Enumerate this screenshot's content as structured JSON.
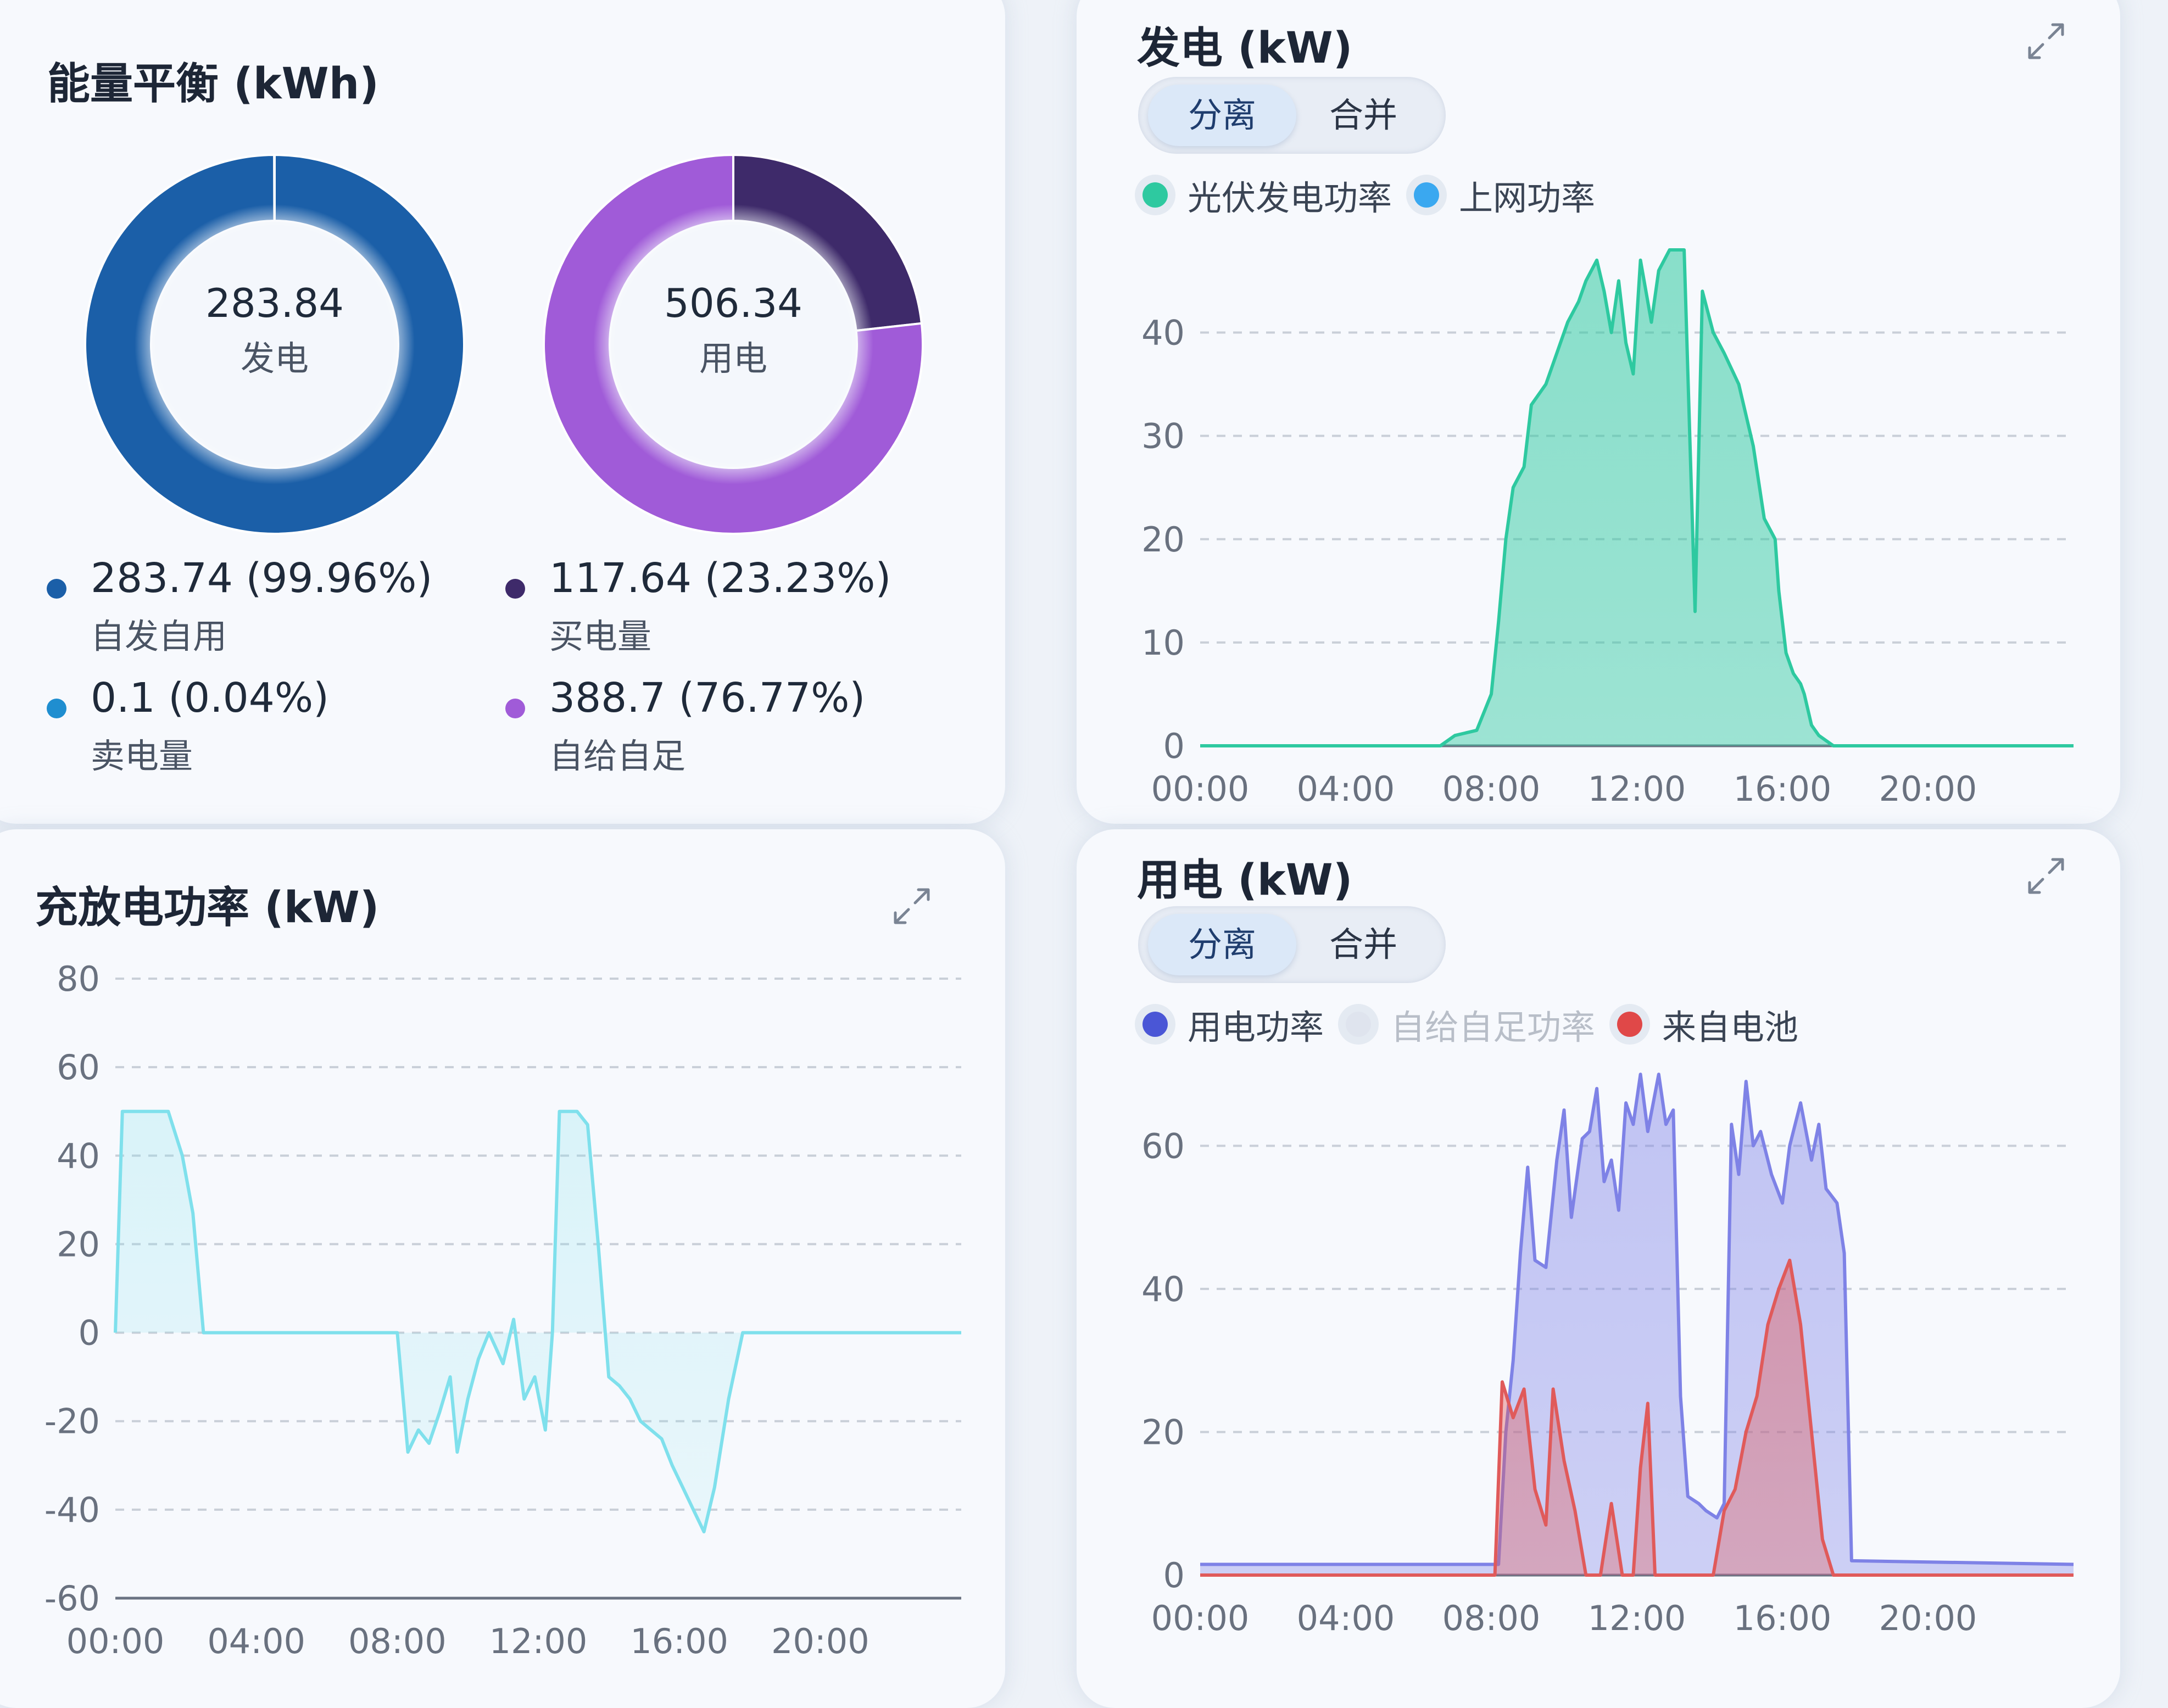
{
  "energy": {
    "title": "能量平衡 (kWh)",
    "gen_total": "283.84",
    "gen_label": "发电",
    "use_total": "506.34",
    "use_label": "用电",
    "stats": [
      {
        "value": "283.74 (99.96%)",
        "label": "自发自用",
        "color": "#1b5fa8"
      },
      {
        "value": "117.64 (23.23%)",
        "label": "买电量",
        "color": "#3e2a6a"
      },
      {
        "value": "0.1 (0.04%)",
        "label": "卖电量",
        "color": "#1f8ed0"
      },
      {
        "value": "388.7 (76.77%)",
        "label": "自给自足",
        "color": "#a05bd8"
      }
    ]
  },
  "toggle": {
    "separate": "分离",
    "merge": "合并"
  },
  "chart_data": [
    {
      "type": "pie",
      "values": [
        283.74,
        0.1
      ],
      "labels": [
        "自发自用",
        "卖电量"
      ],
      "colors": [
        "#1b5fa8",
        "#1f8ed0"
      ]
    },
    {
      "type": "pie",
      "values": [
        117.64,
        388.7
      ],
      "labels": [
        "买电量",
        "自给自足"
      ],
      "colors": [
        "#3e2a6a",
        "#a05bd8"
      ]
    },
    {
      "type": "area",
      "title": "发电 (kW)",
      "legend": [
        "光伏发电功率",
        "上网功率"
      ],
      "legend_colors": [
        "#2ec9a0",
        "#3aa8f0"
      ],
      "x_ticks": [
        "00:00",
        "04:00",
        "08:00",
        "12:00",
        "16:00",
        "20:00"
      ],
      "xlim": [
        0,
        24
      ],
      "ylim": [
        0,
        48
      ],
      "y_ticks": [
        0,
        10,
        20,
        30,
        40
      ],
      "series": [
        {
          "color": "#2ec9a0",
          "points": [
            [
              0,
              0
            ],
            [
              6.6,
              0
            ],
            [
              7.0,
              1
            ],
            [
              7.6,
              1.5
            ],
            [
              8.0,
              5
            ],
            [
              8.2,
              12
            ],
            [
              8.4,
              20
            ],
            [
              8.6,
              25
            ],
            [
              8.9,
              27
            ],
            [
              9.1,
              33
            ],
            [
              9.5,
              35
            ],
            [
              9.8,
              38
            ],
            [
              10.1,
              41
            ],
            [
              10.4,
              43
            ],
            [
              10.6,
              45
            ],
            [
              10.9,
              47
            ],
            [
              11.1,
              44
            ],
            [
              11.3,
              40
            ],
            [
              11.5,
              45
            ],
            [
              11.7,
              39
            ],
            [
              11.9,
              36
            ],
            [
              12.1,
              47
            ],
            [
              12.4,
              41
            ],
            [
              12.6,
              46
            ],
            [
              12.9,
              48
            ],
            [
              13.3,
              48
            ],
            [
              13.6,
              13
            ],
            [
              13.8,
              44
            ],
            [
              14.1,
              40
            ],
            [
              14.4,
              38
            ],
            [
              14.8,
              35
            ],
            [
              15.2,
              29
            ],
            [
              15.5,
              22
            ],
            [
              15.8,
              20
            ],
            [
              15.9,
              15
            ],
            [
              16.1,
              9
            ],
            [
              16.3,
              7
            ],
            [
              16.5,
              6
            ],
            [
              16.6,
              5
            ],
            [
              16.8,
              2
            ],
            [
              17.0,
              1
            ],
            [
              17.4,
              0
            ],
            [
              24,
              0
            ]
          ]
        }
      ]
    },
    {
      "type": "line",
      "title": "充放电功率 (kW)",
      "x_ticks": [
        "00:00",
        "04:00",
        "08:00",
        "12:00",
        "16:00",
        "20:00"
      ],
      "xlim": [
        0,
        24
      ],
      "ylim": [
        -60,
        80
      ],
      "y_ticks": [
        80,
        60,
        40,
        20,
        0,
        -20,
        -40,
        -60
      ],
      "series": [
        {
          "color": "#7fe0ec",
          "points": [
            [
              0,
              0
            ],
            [
              0.2,
              50
            ],
            [
              1.5,
              50
            ],
            [
              1.9,
              40
            ],
            [
              2.2,
              27
            ],
            [
              2.5,
              0
            ],
            [
              8.0,
              0
            ],
            [
              8.3,
              -27
            ],
            [
              8.6,
              -22
            ],
            [
              8.9,
              -25
            ],
            [
              9.2,
              -18
            ],
            [
              9.5,
              -10
            ],
            [
              9.7,
              -27
            ],
            [
              10.0,
              -15
            ],
            [
              10.3,
              -6
            ],
            [
              10.6,
              0
            ],
            [
              11.0,
              -7
            ],
            [
              11.3,
              3
            ],
            [
              11.6,
              -15
            ],
            [
              11.9,
              -10
            ],
            [
              12.2,
              -22
            ],
            [
              12.4,
              0
            ],
            [
              12.6,
              50
            ],
            [
              13.1,
              50
            ],
            [
              13.4,
              47
            ],
            [
              13.7,
              20
            ],
            [
              14.0,
              -10
            ],
            [
              14.3,
              -12
            ],
            [
              14.6,
              -15
            ],
            [
              14.9,
              -20
            ],
            [
              15.2,
              -22
            ],
            [
              15.5,
              -24
            ],
            [
              15.8,
              -30
            ],
            [
              16.1,
              -35
            ],
            [
              16.4,
              -40
            ],
            [
              16.7,
              -45
            ],
            [
              17.0,
              -35
            ],
            [
              17.4,
              -15
            ],
            [
              17.8,
              0
            ],
            [
              24,
              0
            ]
          ]
        }
      ]
    },
    {
      "type": "area",
      "title": "用电 (kW)",
      "legend": [
        "用电功率",
        "自给自足功率",
        "来自电池"
      ],
      "legend_colors": [
        "#4a56d6",
        "#dfe4ee",
        "#e04848"
      ],
      "x_ticks": [
        "00:00",
        "04:00",
        "08:00",
        "12:00",
        "16:00",
        "20:00"
      ],
      "xlim": [
        0,
        24
      ],
      "ylim": [
        0,
        72
      ],
      "y_ticks": [
        0,
        20,
        40,
        60
      ],
      "series": [
        {
          "color": "#7e82e6",
          "points": [
            [
              0,
              1.5
            ],
            [
              8.2,
              1.5
            ],
            [
              8.4,
              20
            ],
            [
              8.6,
              30
            ],
            [
              8.8,
              45
            ],
            [
              9.0,
              57
            ],
            [
              9.2,
              44
            ],
            [
              9.5,
              43
            ],
            [
              9.8,
              58
            ],
            [
              10.0,
              65
            ],
            [
              10.2,
              50
            ],
            [
              10.5,
              61
            ],
            [
              10.7,
              62
            ],
            [
              10.9,
              68
            ],
            [
              11.1,
              55
            ],
            [
              11.3,
              58
            ],
            [
              11.5,
              51
            ],
            [
              11.7,
              66
            ],
            [
              11.9,
              63
            ],
            [
              12.1,
              70
            ],
            [
              12.3,
              62
            ],
            [
              12.6,
              70
            ],
            [
              12.8,
              63
            ],
            [
              13.0,
              65
            ],
            [
              13.2,
              25
            ],
            [
              13.4,
              11
            ],
            [
              13.7,
              10
            ],
            [
              13.9,
              9
            ],
            [
              14.2,
              8
            ],
            [
              14.4,
              10
            ],
            [
              14.6,
              63
            ],
            [
              14.8,
              56
            ],
            [
              15.0,
              69
            ],
            [
              15.2,
              60
            ],
            [
              15.4,
              62
            ],
            [
              15.7,
              56
            ],
            [
              16.0,
              52
            ],
            [
              16.2,
              60
            ],
            [
              16.5,
              66
            ],
            [
              16.8,
              58
            ],
            [
              17.0,
              63
            ],
            [
              17.2,
              54
            ],
            [
              17.5,
              52
            ],
            [
              17.7,
              45
            ],
            [
              17.9,
              2
            ],
            [
              24,
              1.5
            ]
          ]
        },
        {
          "color": "#e05a5a",
          "points": [
            [
              0,
              0
            ],
            [
              8.1,
              0
            ],
            [
              8.3,
              27
            ],
            [
              8.6,
              22
            ],
            [
              8.9,
              26
            ],
            [
              9.2,
              12
            ],
            [
              9.5,
              7
            ],
            [
              9.7,
              26
            ],
            [
              10.0,
              16
            ],
            [
              10.3,
              9
            ],
            [
              10.6,
              0
            ],
            [
              11.0,
              0
            ],
            [
              11.3,
              10
            ],
            [
              11.6,
              0
            ],
            [
              11.9,
              0
            ],
            [
              12.1,
              15
            ],
            [
              12.3,
              24
            ],
            [
              12.5,
              0
            ],
            [
              14.1,
              0
            ],
            [
              14.4,
              9
            ],
            [
              14.7,
              12
            ],
            [
              15.0,
              20
            ],
            [
              15.3,
              25
            ],
            [
              15.6,
              35
            ],
            [
              15.9,
              40
            ],
            [
              16.2,
              44
            ],
            [
              16.5,
              35
            ],
            [
              16.8,
              20
            ],
            [
              17.1,
              5
            ],
            [
              17.4,
              0
            ],
            [
              24,
              0
            ]
          ]
        }
      ]
    }
  ]
}
